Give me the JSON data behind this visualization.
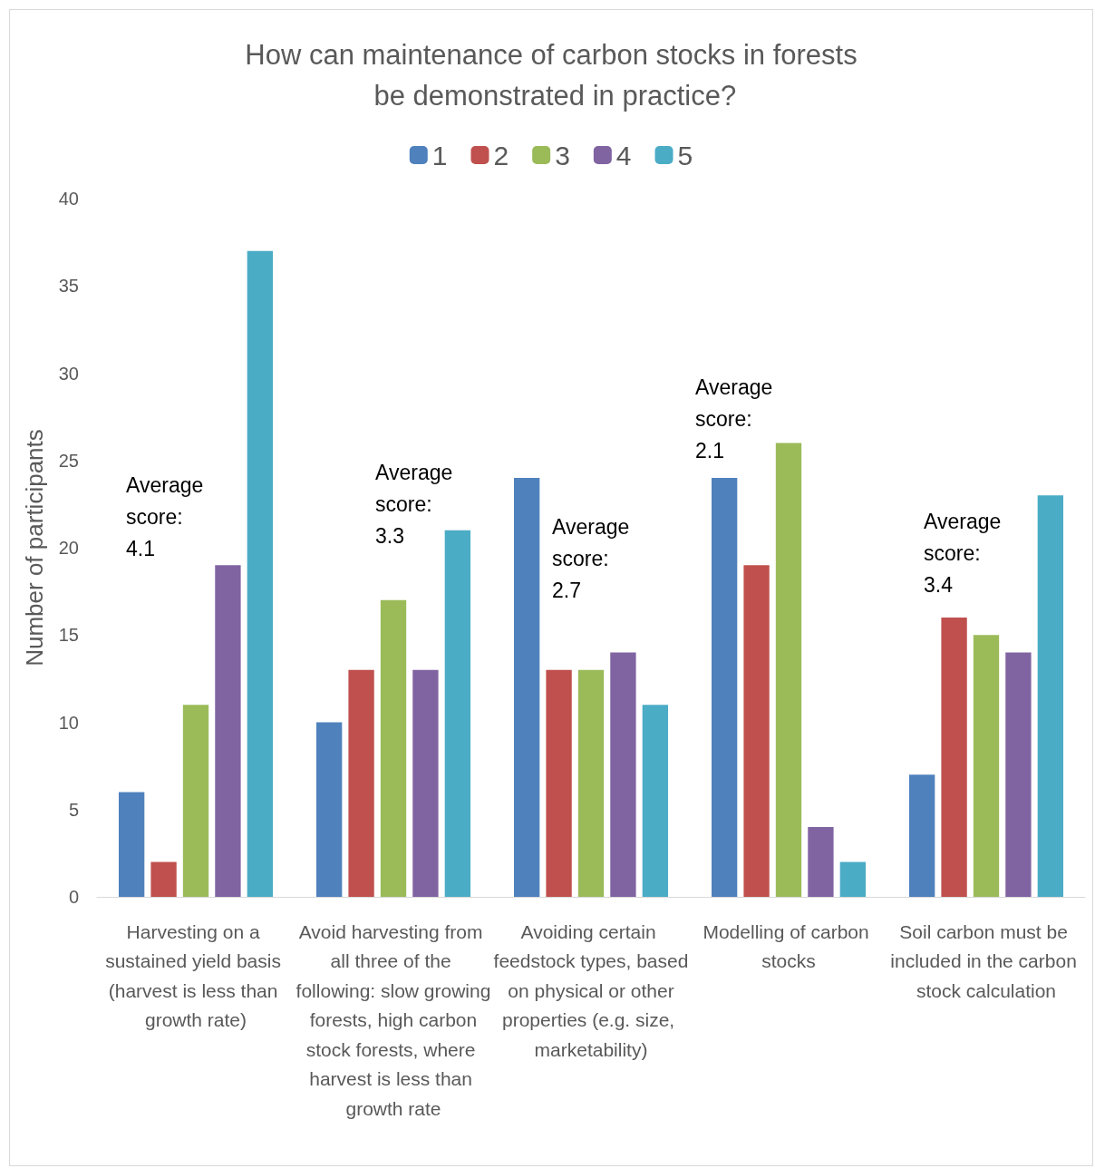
{
  "chart_data": {
    "type": "bar",
    "title": "How can maintenance of carbon stocks in forests be demonstrated in practice?",
    "ylabel": "Number of participants",
    "categories": [
      "Harvesting on a sustained yield basis (harvest is less than growth rate)",
      "Avoid harvesting from all three of the following: slow growing forests, high carbon stock forests, where harvest is less than growth rate",
      "Avoiding certain feedstock types, based on physical or other properties (e.g. size, marketability)",
      "Modelling of carbon stocks",
      "Soil carbon must be included in the carbon stock calculation"
    ],
    "series": [
      {
        "name": "1",
        "color": "#4f81bd",
        "values": [
          6,
          10,
          24,
          24,
          7
        ]
      },
      {
        "name": "2",
        "color": "#c0504d",
        "values": [
          2,
          13,
          13,
          19,
          16
        ]
      },
      {
        "name": "3",
        "color": "#9bbb59",
        "values": [
          11,
          17,
          13,
          26,
          15
        ]
      },
      {
        "name": "4",
        "color": "#8064a2",
        "values": [
          19,
          13,
          14,
          4,
          14
        ]
      },
      {
        "name": "5",
        "color": "#4bacc6",
        "values": [
          37,
          21,
          11,
          2,
          23
        ]
      }
    ],
    "ylim": [
      0,
      40
    ],
    "yticks": [
      0,
      5,
      10,
      15,
      20,
      25,
      30,
      35,
      40
    ],
    "grid": false,
    "legend": "top",
    "annotations": [
      "Average score: 4.1",
      "Average score: 3.3",
      "Average score: 2.7",
      "Average score: 2.1",
      "Average score: 3.4"
    ]
  }
}
